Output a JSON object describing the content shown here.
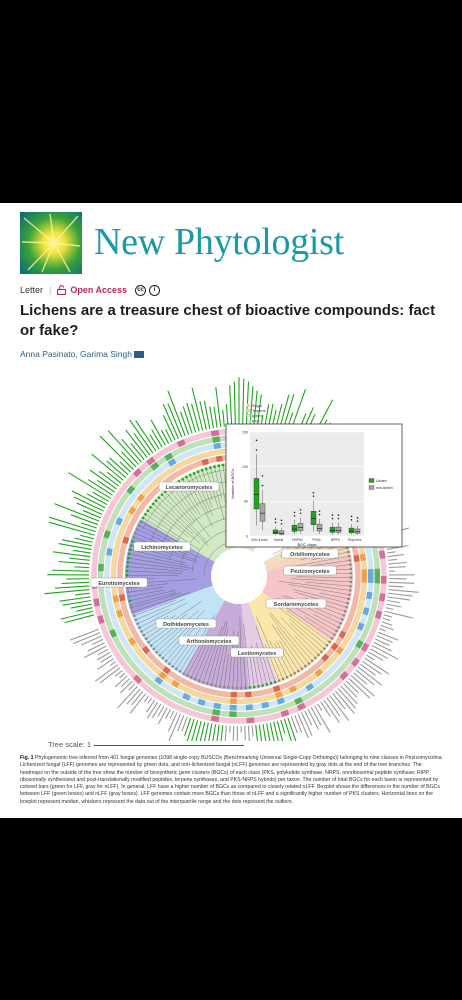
{
  "journal": {
    "name": "New Phytologist"
  },
  "meta": {
    "article_type": "Letter",
    "separator": "|",
    "open_access": "Open Access",
    "cc_label": "cc",
    "by_label": "i"
  },
  "paper": {
    "title": "Lichens are a treasure chest of bioactive compounds: fact or fake?",
    "authors": "Anna Pasinato, Garima Singh"
  },
  "figure": {
    "clades": [
      "Lecanoromycetes",
      "Lichinomycetes",
      "Eurotiomycetes",
      "Dothideomycetes",
      "Arthoniomycetes",
      "Leotiomycetes",
      "Sordariomycetes",
      "Pezizomycetes",
      "Orbiliomycetes"
    ],
    "clade_colors": {
      "Lecanoromycetes": "#cfe9c0",
      "Lichinomycetes": "#9e9ae0",
      "Eurotiomycetes": "#bfe1f6",
      "Dothideomycetes": "#c4a6d6",
      "Arthoniomycetes": "#e3c9e6",
      "Leotiomycetes": "#fbe6a6",
      "Sordariomycetes": "#f5c2c4",
      "Pezizomycetes": "#f6d3b6",
      "Orbiliomycetes": "#eedfbf"
    },
    "outer_legend": [
      "Sugar",
      "Terpene",
      "RiPPs",
      "PKS",
      "NRPS",
      "Hybrid"
    ],
    "scale_label": "Tree scale: 1",
    "lichen_color": "#1fa51f",
    "nonlichen_color": "#9a9a9a"
  },
  "chart_data": {
    "type": "box",
    "title": "",
    "xlabel": "BGC class",
    "ylabel": "Number of BGCs",
    "categories": [
      "BGCs total",
      "Hybrid",
      "NRPSs",
      "PKSs",
      "RiPPs",
      "Terpenes"
    ],
    "series": [
      {
        "name": "Lichen",
        "medians": [
          60,
          5,
          10,
          25,
          8,
          7
        ]
      },
      {
        "name": "non-lichen",
        "medians": [
          33,
          4,
          12,
          11,
          8,
          6
        ]
      }
    ],
    "ylim": [
      0,
      150
    ],
    "legend": "right"
  },
  "caption": {
    "fig_label": "Fig. 1",
    "text": "Phylogenomic tree inferred from 401 fungal genomes (1098 single-copy BUSCOs (Benchmarking Universal Single-Copy Orthologs)) belonging to nine classes in Pezizomycotina. Lichenized fungal (LFF) genomes are represented by green dots, and non-lichenized fungal (nLFF) genomes are represented by gray dots at the end of the tree branches. The heatmaps on the outside of the tree show the number of biosynthetic gene clusters (BGCs) of each class (PKS, polyketide synthase; NRPS, nonribosomal peptide synthase; RiPP, ribosomally synthesized and post-translationally modified peptides, terpene synthases, and PKS-NRPS hybrids) per taxon. The number of total BGCs for each taxon is represented by colored bars (green for LFF, gray for nLFF). In general, LFF have a higher number of BGCs as compared to closely related nLFF. Boxplot shows the differences in the number of BGCs between LFF (green boxes) and nLFF (gray boxes). LFF genomes contain more BGCs than those of nLFF and a significantly higher number of PKS clusters. Horizontal lines on the boxplot represent median, whiskers represent the data out of the interquartile range and the dots represent the outliers."
  }
}
